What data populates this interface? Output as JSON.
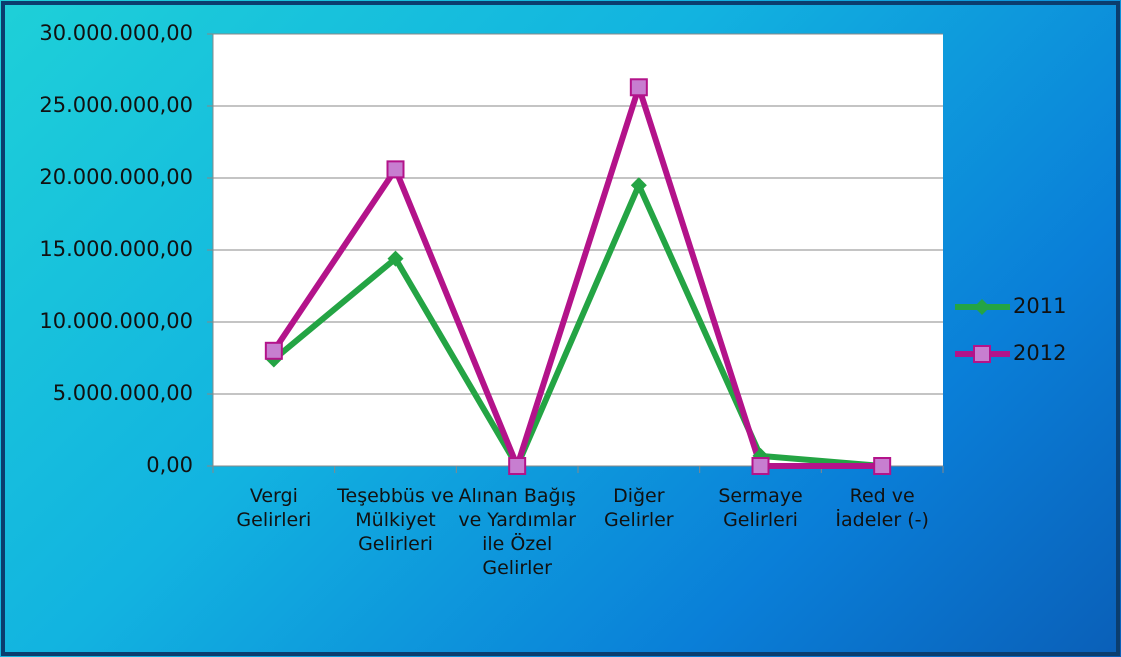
{
  "chart_data": {
    "type": "line",
    "categories": [
      "Vergi Gelirleri",
      "Teşebbüs ve Mülkiyet Gelirleri",
      "Alınan Bağış ve Yardımlar ile Özel Gelirler",
      "Diğer Gelirler",
      "Sermaye Gelirleri",
      "Red ve İadeler (-)"
    ],
    "series": [
      {
        "name": "2011",
        "color": "#24a444",
        "values": [
          7400000,
          14400000,
          0,
          19500000,
          700000,
          0
        ]
      },
      {
        "name": "2012",
        "color": "#b3138a",
        "values": [
          8000000,
          20600000,
          0,
          26300000,
          0,
          0
        ]
      }
    ],
    "ylim": [
      0,
      30000000
    ],
    "yticks": [
      {
        "value": 0,
        "label": "0,00"
      },
      {
        "value": 5000000,
        "label": "5.000.000,00"
      },
      {
        "value": 10000000,
        "label": "10.000.000,00"
      },
      {
        "value": 15000000,
        "label": "15.000.000,00"
      },
      {
        "value": 20000000,
        "label": "20.000.000,00"
      },
      {
        "value": 25000000,
        "label": "25.000.000,00"
      },
      {
        "value": 30000000,
        "label": "30.000.000,00"
      }
    ],
    "grid": true,
    "legend": "right"
  }
}
